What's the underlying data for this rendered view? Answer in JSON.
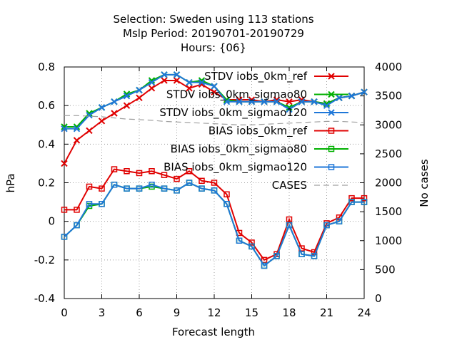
{
  "chart_data": {
    "type": "line",
    "title_lines": [
      "Selection: Sweden using    113 stations",
      "Mslp   Period: 20190701-20190729",
      "Hours: {06}"
    ],
    "xlabel": "Forecast length",
    "ylabel": "hPa",
    "y2label": "No cases",
    "xlim": [
      0,
      24
    ],
    "ylim": [
      -0.4,
      0.8
    ],
    "y2lim": [
      0,
      4000
    ],
    "xticks": [
      0,
      3,
      6,
      9,
      12,
      15,
      18,
      21,
      24
    ],
    "yticks": [
      -0.4,
      -0.2,
      0,
      0.2,
      0.4,
      0.6,
      0.8
    ],
    "y2ticks": [
      0,
      500,
      1000,
      1500,
      2000,
      2500,
      3000,
      3500,
      4000
    ],
    "grid": true,
    "legend_position": "top-right",
    "x": [
      0,
      1,
      2,
      3,
      4,
      5,
      6,
      7,
      8,
      9,
      10,
      11,
      12,
      13,
      14,
      15,
      16,
      17,
      18,
      19,
      20,
      21,
      22,
      23,
      24
    ],
    "series": [
      {
        "name": "STDV iobs_0km_ref",
        "color": "#e00000",
        "marker": "x",
        "axis": "y",
        "values": [
          0.3,
          0.42,
          0.47,
          0.52,
          0.56,
          0.6,
          0.64,
          0.69,
          0.73,
          0.73,
          0.69,
          0.71,
          0.67,
          0.63,
          0.63,
          0.63,
          0.62,
          0.63,
          0.62,
          0.63,
          0.62,
          0.61,
          0.64,
          0.65,
          0.67
        ]
      },
      {
        "name": "STDV iobs_0km_sigmao80",
        "color": "#00b000",
        "marker": "x",
        "axis": "y",
        "values": [
          0.49,
          0.49,
          0.56,
          0.59,
          0.62,
          0.66,
          0.68,
          0.73,
          0.76,
          0.76,
          0.72,
          0.73,
          0.7,
          0.63,
          0.62,
          0.62,
          0.62,
          0.62,
          0.59,
          0.62,
          0.62,
          0.61,
          0.64,
          0.65,
          0.67
        ]
      },
      {
        "name": "STDV iobs_0km_sigmao120",
        "color": "#1f77d8",
        "marker": "x",
        "axis": "y",
        "values": [
          0.48,
          0.48,
          0.55,
          0.59,
          0.62,
          0.65,
          0.68,
          0.72,
          0.76,
          0.76,
          0.72,
          0.72,
          0.7,
          0.62,
          0.62,
          0.62,
          0.62,
          0.62,
          0.58,
          0.62,
          0.62,
          0.6,
          0.64,
          0.65,
          0.67
        ]
      },
      {
        "name": "BIAS iobs_0km_ref",
        "color": "#e00000",
        "marker": "square",
        "axis": "y",
        "values": [
          0.06,
          0.06,
          0.18,
          0.17,
          0.27,
          0.26,
          0.25,
          0.26,
          0.24,
          0.22,
          0.26,
          0.21,
          0.2,
          0.14,
          -0.06,
          -0.11,
          -0.2,
          -0.17,
          0.01,
          -0.14,
          -0.16,
          -0.01,
          0.02,
          0.12,
          0.12
        ]
      },
      {
        "name": "BIAS iobs_0km_sigmao80",
        "color": "#00b000",
        "marker": "square",
        "axis": "y",
        "values": [
          -0.08,
          -0.02,
          0.08,
          0.09,
          0.19,
          0.17,
          0.17,
          0.18,
          0.17,
          0.16,
          0.2,
          0.17,
          0.16,
          0.09,
          -0.1,
          -0.13,
          -0.23,
          -0.18,
          -0.02,
          -0.17,
          -0.18,
          -0.02,
          0.0,
          0.1,
          0.1
        ]
      },
      {
        "name": "BIAS iobs_0km_sigmao120",
        "color": "#1f77d8",
        "marker": "square",
        "axis": "y",
        "values": [
          -0.08,
          -0.02,
          0.09,
          0.09,
          0.19,
          0.17,
          0.17,
          0.19,
          0.17,
          0.16,
          0.2,
          0.17,
          0.16,
          0.09,
          -0.1,
          -0.13,
          -0.23,
          -0.18,
          -0.02,
          -0.17,
          -0.18,
          -0.02,
          0.0,
          0.1,
          0.1
        ]
      },
      {
        "name": "CASES",
        "color": "#a0a0a0",
        "marker": "none",
        "axis": "y2",
        "dashed": true,
        "values": [
          3160,
          3160,
          3150,
          3140,
          3120,
          3100,
          3090,
          3080,
          3060,
          3050,
          3040,
          3030,
          3020,
          3010,
          3000,
          3000,
          3010,
          3020,
          3030,
          3040,
          3050,
          3060,
          3060,
          3050,
          3040
        ]
      }
    ]
  }
}
